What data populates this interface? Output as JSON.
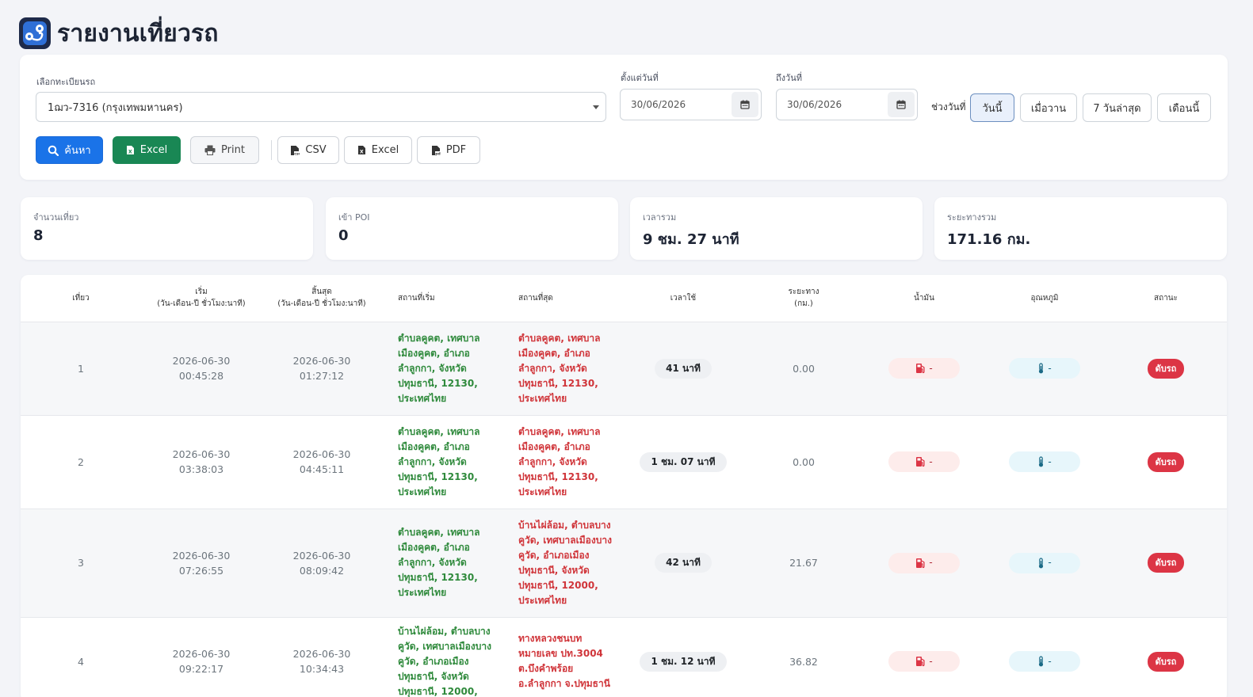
{
  "page": {
    "title": "รายงานเที่ยวรถ"
  },
  "filters": {
    "vehicle_label": "เลือกทะเบียนรถ",
    "vehicle_value": "1ฌว-7316 (กรุงเทพมหานคร)",
    "from_label": "ตั้งแต่วันที่",
    "from_value": "30/06/2026",
    "to_label": "ถึงวันที่",
    "to_value": "30/06/2026",
    "range_label": "ช่วงวันที่",
    "range_buttons": [
      "วันนี้",
      "เมื่อวาน",
      "7 วันล่าสุด",
      "เดือนนี้"
    ],
    "active_range": "วันนี้"
  },
  "actions": {
    "search": "ค้นหา",
    "excel_main": "Excel",
    "print": "Print",
    "csv": "CSV",
    "excel": "Excel",
    "pdf": "PDF"
  },
  "stats": [
    {
      "label": "จำนวนเที่ยว",
      "value": "8"
    },
    {
      "label": "เข้า POI",
      "value": "0"
    },
    {
      "label": "เวลารวม",
      "value": "9 ชม. 27 นาที"
    },
    {
      "label": "ระยะทางรวม",
      "value": "171.16 กม."
    }
  ],
  "table": {
    "headers": {
      "trip": "เที่ยว",
      "start": "เริ่ม",
      "start_sub": "(วัน-เดือน-ปี ชั่วโมง:นาที)",
      "end": "สิ้นสุด",
      "end_sub": "(วัน-เดือน-ปี ชั่วโมง:นาที)",
      "start_loc": "สถานที่เริ่ม",
      "end_loc": "สถานที่สุด",
      "duration": "เวลาใช้",
      "distance": "ระยะทาง",
      "distance_sub": "(กม.)",
      "fuel": "น้ำมัน",
      "temp": "อุณหภูมิ",
      "status": "สถานะ"
    },
    "rows": [
      {
        "trip": "1",
        "start_date": "2026-06-30",
        "start_time": "00:45:28",
        "end_date": "2026-06-30",
        "end_time": "01:27:12",
        "start_loc": [
          "ตำบลคูคต, เทศบาล",
          "เมืองคูคต, อำเภอ",
          "ลำลูกกา, จังหวัด",
          "ปทุมธานี, 12130,",
          "ประเทศไทย"
        ],
        "end_loc": [
          "ตำบลคูคต, เทศบาล",
          "เมืองคูคต, อำเภอ",
          "ลำลูกกา, จังหวัด",
          "ปทุมธานี, 12130,",
          "ประเทศไทย"
        ],
        "duration": "41 นาที",
        "distance": "0.00",
        "fuel": "-",
        "temp": "-",
        "status": "ดับรถ"
      },
      {
        "trip": "2",
        "start_date": "2026-06-30",
        "start_time": "03:38:03",
        "end_date": "2026-06-30",
        "end_time": "04:45:11",
        "start_loc": [
          "ตำบลคูคต, เทศบาล",
          "เมืองคูคต, อำเภอ",
          "ลำลูกกา, จังหวัด",
          "ปทุมธานี, 12130,",
          "ประเทศไทย"
        ],
        "end_loc": [
          "ตำบลคูคต, เทศบาล",
          "เมืองคูคต, อำเภอ",
          "ลำลูกกา, จังหวัด",
          "ปทุมธานี, 12130,",
          "ประเทศไทย"
        ],
        "duration": "1 ชม. 07 นาที",
        "distance": "0.00",
        "fuel": "-",
        "temp": "-",
        "status": "ดับรถ"
      },
      {
        "trip": "3",
        "start_date": "2026-06-30",
        "start_time": "07:26:55",
        "end_date": "2026-06-30",
        "end_time": "08:09:42",
        "start_loc": [
          "ตำบลคูคต, เทศบาล",
          "เมืองคูคต, อำเภอ",
          "ลำลูกกา, จังหวัด",
          "ปทุมธานี, 12130,",
          "ประเทศไทย"
        ],
        "end_loc": [
          "บ้านไผ่ล้อม, ตำบลบาง",
          "คูวัด, เทศบาลเมืองบาง",
          "คูวัด, อำเภอเมือง",
          "ปทุมธานี, จังหวัด",
          "ปทุมธานี, 12000,",
          "ประเทศไทย"
        ],
        "duration": "42 นาที",
        "distance": "21.67",
        "fuel": "-",
        "temp": "-",
        "status": "ดับรถ"
      },
      {
        "trip": "4",
        "start_date": "2026-06-30",
        "start_time": "09:22:17",
        "end_date": "2026-06-30",
        "end_time": "10:34:43",
        "start_loc": [
          "บ้านไผ่ล้อม, ตำบลบาง",
          "คูวัด, เทศบาลเมืองบาง",
          "คูวัด, อำเภอเมือง",
          "ปทุมธานี, จังหวัด",
          "ปทุมธานี, 12000,"
        ],
        "end_loc": [
          "ทางหลวงชนบท",
          "หมายเลข ปท.3004",
          "ต.บึงคำพร้อย",
          "อ.ลำลูกกา จ.ปทุมธานี"
        ],
        "duration": "1 ชม. 12 นาที",
        "distance": "36.82",
        "fuel": "-",
        "temp": "-",
        "status": "ดับรถ"
      }
    ]
  },
  "colors": {
    "primary": "#1a73e8",
    "success": "#198754",
    "danger": "#dc3545",
    "start_loc": "#2f8a3c",
    "end_loc": "#d0353a"
  }
}
